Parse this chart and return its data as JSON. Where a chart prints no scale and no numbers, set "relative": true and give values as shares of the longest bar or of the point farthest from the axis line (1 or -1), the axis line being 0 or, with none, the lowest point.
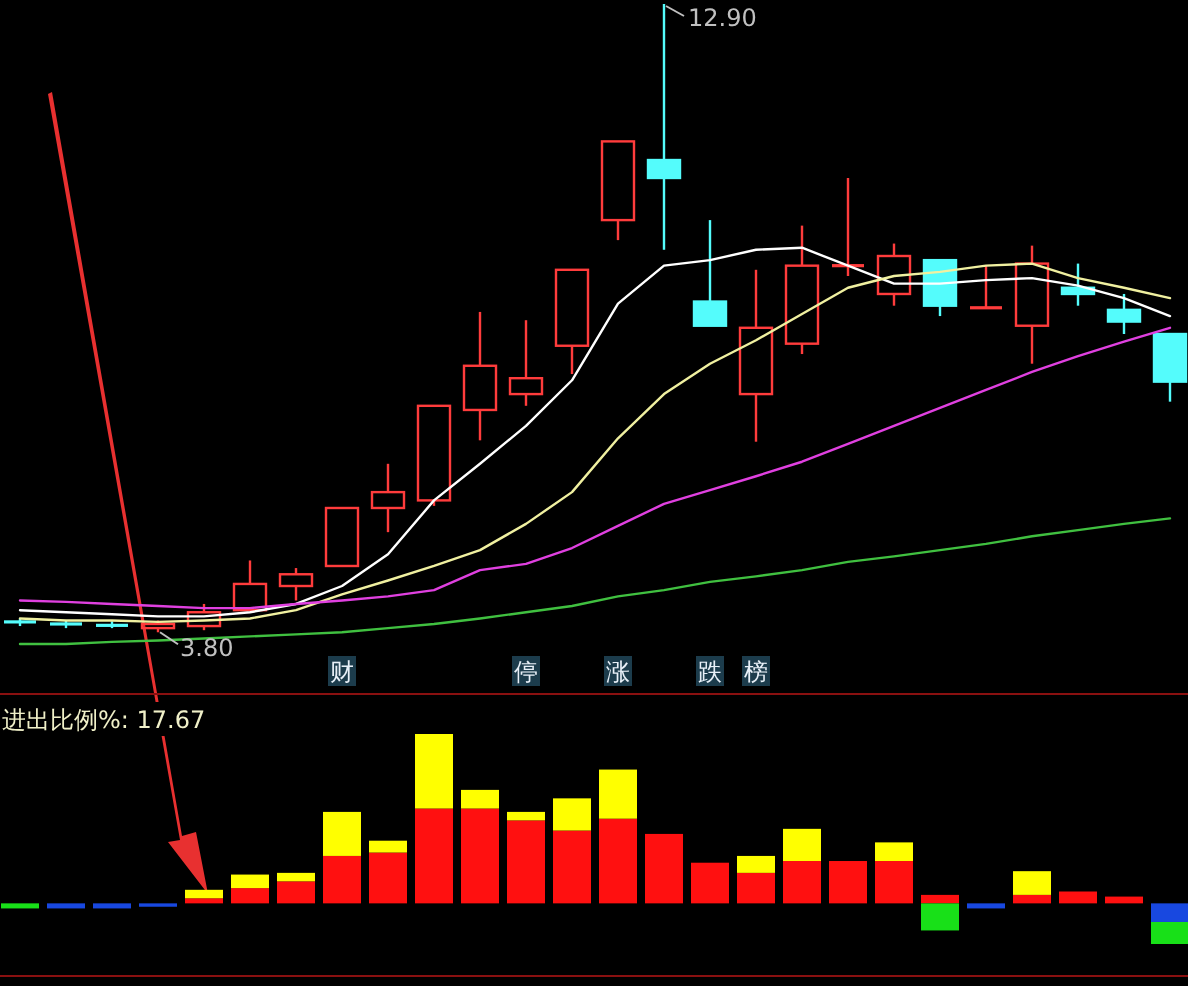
{
  "chart_data": [
    {
      "type": "candlestick",
      "tick_labels": "x",
      "categories": [
        null,
        null,
        null,
        null,
        null,
        null,
        null,
        "财",
        null,
        null,
        null,
        "停",
        null,
        "涨",
        null,
        "跌",
        "榜",
        null,
        null,
        null,
        null,
        null,
        null,
        null,
        null,
        null
      ],
      "ohlc": [
        [
          3.95,
          4.0,
          3.89,
          3.95
        ],
        [
          3.92,
          3.97,
          3.86,
          3.92
        ],
        [
          3.9,
          3.96,
          3.86,
          3.9
        ],
        [
          3.86,
          3.97,
          3.8,
          3.92
        ],
        [
          3.89,
          4.21,
          3.83,
          4.09
        ],
        [
          4.12,
          4.84,
          4.12,
          4.5
        ],
        [
          4.47,
          4.73,
          4.26,
          4.64
        ],
        [
          4.76,
          5.6,
          4.76,
          5.6
        ],
        [
          5.6,
          6.24,
          5.25,
          5.83
        ],
        [
          5.71,
          7.08,
          5.63,
          7.08
        ],
        [
          7.02,
          8.44,
          6.58,
          7.66
        ],
        [
          7.25,
          8.32,
          7.08,
          7.48
        ],
        [
          7.95,
          9.05,
          7.54,
          9.05
        ],
        [
          9.77,
          10.91,
          9.48,
          10.91
        ],
        [
          10.64,
          12.9,
          9.34,
          10.38
        ],
        [
          8.59,
          9.77,
          8.24,
          8.24
        ],
        [
          7.25,
          9.05,
          6.56,
          8.21
        ],
        [
          7.98,
          9.69,
          7.83,
          9.11
        ],
        [
          9.11,
          10.38,
          8.96,
          9.11
        ],
        [
          8.7,
          9.43,
          8.53,
          9.25
        ],
        [
          9.19,
          9.19,
          8.38,
          8.53
        ],
        [
          8.5,
          9.11,
          8.5,
          8.5
        ],
        [
          8.24,
          9.4,
          7.69,
          9.14
        ],
        [
          8.79,
          9.14,
          8.53,
          8.7
        ],
        [
          8.47,
          8.7,
          8.12,
          8.3
        ],
        [
          8.12,
          8.12,
          7.14,
          7.43
        ]
      ],
      "colors": [
        "#54fcfc",
        "#54fcfc",
        "#54fcfc",
        "#ff3c3c",
        "#ff3c3c",
        "#ff3c3c",
        "#ff3c3c",
        "#ff3c3c",
        "#ff3c3c",
        "#ff3c3c",
        "#ff3c3c",
        "#ff3c3c",
        "#ff3c3c",
        "#ff3c3c",
        "#54fcfc",
        "#54fcfc",
        "#ff3c3c",
        "#ff3c3c",
        "#ff3c3c",
        "#ff3c3c",
        "#54fcfc",
        "#ff3c3c",
        "#ff3c3c",
        "#54fcfc",
        "#54fcfc",
        "#54fcfc"
      ],
      "series": [
        {
          "type": "line",
          "color": "#ffffff",
          "values": [
            4.12,
            4.09,
            4.06,
            4.03,
            4.03,
            4.09,
            4.21,
            4.47,
            4.93,
            5.71,
            6.24,
            6.79,
            7.45,
            8.56,
            9.11,
            9.19,
            9.34,
            9.37,
            9.11,
            8.85,
            8.85,
            8.9,
            8.93,
            8.82,
            8.64,
            8.38
          ]
        },
        {
          "type": "line",
          "color": "#f0f0a0",
          "values": [
            4.0,
            3.97,
            3.97,
            3.95,
            3.97,
            4.0,
            4.12,
            4.35,
            4.55,
            4.76,
            4.99,
            5.37,
            5.83,
            6.61,
            7.25,
            7.69,
            8.03,
            8.41,
            8.79,
            8.96,
            9.02,
            9.11,
            9.14,
            8.93,
            8.79,
            8.64
          ]
        },
        {
          "type": "line",
          "color": "#e040e0",
          "values": [
            4.26,
            4.24,
            4.21,
            4.18,
            4.15,
            4.15,
            4.21,
            4.26,
            4.32,
            4.41,
            4.7,
            4.79,
            5.02,
            5.34,
            5.66,
            5.86,
            6.06,
            6.27,
            6.53,
            6.79,
            7.05,
            7.31,
            7.57,
            7.8,
            8.01,
            8.21
          ]
        },
        {
          "type": "line",
          "color": "#40c040",
          "values": [
            3.63,
            3.63,
            3.66,
            3.68,
            3.71,
            3.74,
            3.77,
            3.8,
            3.86,
            3.92,
            4.0,
            4.09,
            4.18,
            4.32,
            4.41,
            4.53,
            4.61,
            4.7,
            4.82,
            4.9,
            4.99,
            5.08,
            5.19,
            5.28,
            5.37,
            5.45
          ]
        }
      ],
      "annotations": [
        "12.90",
        "3.80"
      ]
    },
    {
      "type": "bar",
      "stacked": true,
      "relative": true,
      "tick_labels": false,
      "title": "进出比例%: 17.67",
      "categories": [
        null,
        null,
        null,
        null,
        null,
        null,
        null,
        null,
        null,
        null,
        null,
        null,
        null,
        null,
        null,
        null,
        null,
        null,
        null,
        null,
        null,
        null,
        null,
        null,
        null,
        null
      ],
      "series": [
        {
          "color": "#ff1010",
          "values": [
            null,
            null,
            null,
            null,
            0.03,
            0.09,
            0.13,
            0.28,
            0.3,
            0.56,
            0.56,
            0.49,
            0.43,
            0.5,
            0.41,
            0.24,
            0.18,
            0.25,
            0.25,
            0.25,
            0.05,
            null,
            0.05,
            0.07,
            0.04,
            null
          ]
        },
        {
          "color": "#ffff00",
          "values": [
            null,
            null,
            null,
            null,
            0.05,
            0.08,
            0.05,
            0.26,
            0.07,
            0.44,
            0.11,
            0.05,
            0.19,
            0.29,
            null,
            null,
            0.1,
            0.19,
            null,
            0.11,
            null,
            null,
            0.14,
            null,
            null,
            null
          ]
        },
        {
          "color": "#1848e0",
          "values": [
            null,
            -0.03,
            -0.03,
            -0.02,
            null,
            null,
            null,
            null,
            null,
            null,
            null,
            null,
            null,
            null,
            null,
            null,
            null,
            null,
            null,
            null,
            null,
            -0.03,
            null,
            null,
            null,
            -0.11
          ]
        },
        {
          "color": "#18e018",
          "values": [
            -0.03,
            null,
            null,
            null,
            null,
            null,
            null,
            null,
            null,
            null,
            null,
            null,
            null,
            null,
            null,
            null,
            null,
            null,
            null,
            null,
            -0.16,
            null,
            null,
            null,
            null,
            -0.13
          ]
        }
      ]
    }
  ]
}
